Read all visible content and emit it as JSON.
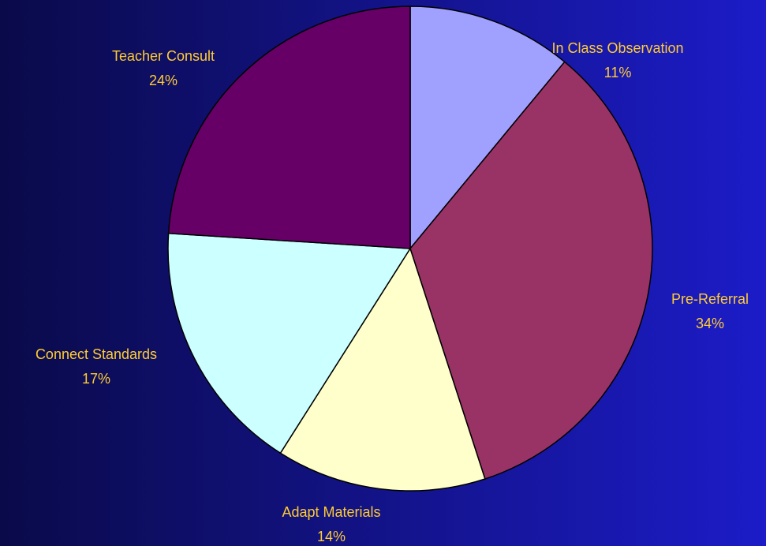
{
  "chart_data": {
    "type": "pie",
    "categories": [
      "In Class Observation",
      "Pre-Referral",
      "Adapt Materials",
      "Connect Standards",
      "Teacher Consult"
    ],
    "values": [
      11,
      34,
      14,
      17,
      24
    ],
    "value_labels": [
      "11%",
      "34%",
      "14%",
      "17%",
      "24%"
    ],
    "colors": [
      "#a0a0ff",
      "#993366",
      "#ffffcc",
      "#ccffff",
      "#660066"
    ]
  }
}
